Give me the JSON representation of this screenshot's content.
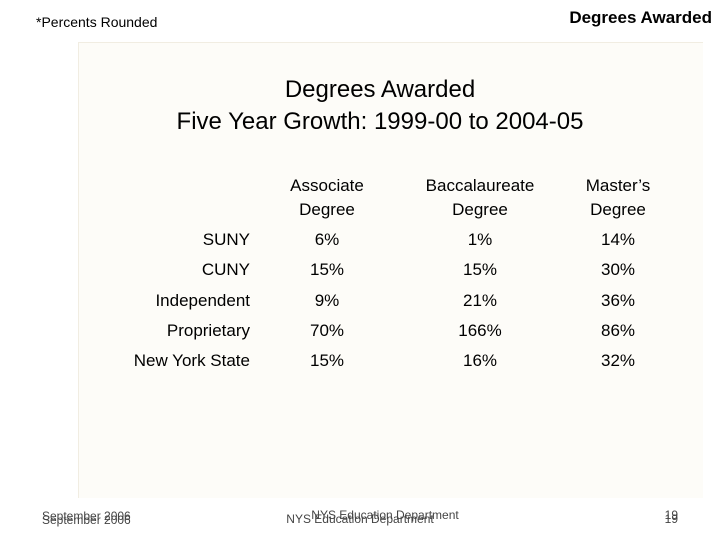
{
  "header": {
    "note": "*Percents Rounded",
    "title": "Degrees Awarded"
  },
  "slide": {
    "title": [
      "Degrees Awarded",
      "Five Year Growth: 1999-00 to 2004-05"
    ]
  },
  "table": {
    "columns": [
      [
        "Associate",
        "Degree"
      ],
      [
        "Baccalaureate",
        "Degree"
      ],
      [
        "Master’s",
        "Degree"
      ]
    ],
    "rows": [
      [
        "SUNY",
        "6%",
        "1%",
        "14%"
      ],
      [
        "CUNY",
        "15%",
        "15%",
        "30%"
      ],
      [
        "Independent",
        "9%",
        "21%",
        "36%"
      ],
      [
        "Proprietary",
        "70%",
        "166%",
        "86%"
      ],
      [
        "New York State",
        "15%",
        "16%",
        "32%"
      ]
    ]
  },
  "footer": {
    "date": [
      "September 2006",
      "September 2006"
    ],
    "org": [
      "NYS Education Department",
      "NYS Education Department"
    ],
    "page": [
      "19",
      "19"
    ]
  }
}
